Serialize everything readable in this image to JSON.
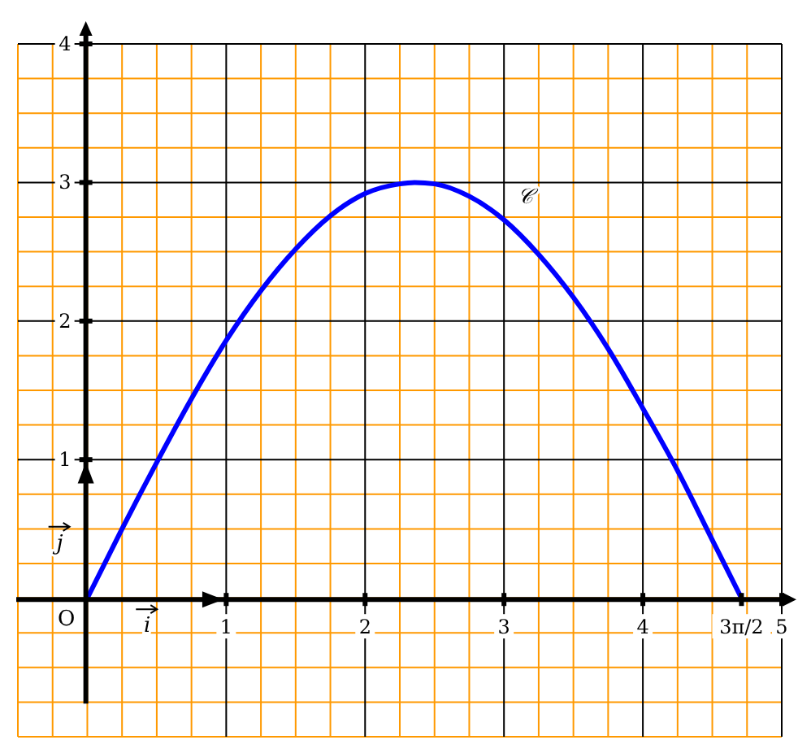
{
  "chart_data": {
    "type": "line",
    "x": [
      0,
      0.25,
      0.5,
      0.75,
      1,
      1.25,
      1.5,
      1.75,
      2,
      2.25,
      2.36,
      2.5,
      2.75,
      3,
      3.25,
      3.5,
      3.75,
      4,
      4.25,
      4.5,
      4.71
    ],
    "series": [
      {
        "color": "#0000ff",
        "values": [
          0,
          0.5,
          0.98,
          1.44,
          1.86,
          2.22,
          2.52,
          2.76,
          2.92,
          2.99,
          3,
          2.99,
          2.9,
          2.73,
          2.48,
          2.17,
          1.8,
          1.37,
          0.92,
          0.42,
          0
        ]
      }
    ],
    "xlim": [
      -0.5,
      5
    ],
    "ylim": [
      -1,
      4
    ],
    "xticks": [
      {
        "value": -0.5,
        "label": null
      },
      {
        "value": -0.25,
        "label": null
      },
      {
        "value": 0,
        "label": null
      },
      {
        "value": 0.25,
        "label": null
      },
      {
        "value": 0.5,
        "label": null
      },
      {
        "value": 0.75,
        "label": null
      },
      1,
      {
        "value": 1.25,
        "label": null
      },
      {
        "value": 1.5,
        "label": null
      },
      {
        "value": 1.75,
        "label": null
      },
      2,
      {
        "value": 2.25,
        "label": null
      },
      {
        "value": 2.5,
        "label": null
      },
      {
        "value": 2.75,
        "label": null
      },
      3,
      {
        "value": 3.25,
        "label": null
      },
      {
        "value": 3.5,
        "label": null
      },
      {
        "value": 3.75,
        "label": null
      },
      4,
      {
        "value": 4.25,
        "label": null
      },
      {
        "value": 4.5,
        "label": null
      },
      {
        "value": 4.71,
        "label": "3π/2"
      },
      {
        "value": 4.75,
        "label": null
      },
      5
    ],
    "yticks": [
      {
        "value": -1,
        "label": null
      },
      {
        "value": -0.75,
        "label": null
      },
      {
        "value": -0.5,
        "label": null
      },
      {
        "value": -0.25,
        "label": null
      },
      {
        "value": 0,
        "label": null
      },
      {
        "value": 0.25,
        "label": null
      },
      {
        "value": 0.5,
        "label": null
      },
      {
        "value": 0.75,
        "label": null
      },
      1,
      {
        "value": 1.25,
        "label": null
      },
      {
        "value": 1.5,
        "label": null
      },
      {
        "value": 1.75,
        "label": null
      },
      2,
      {
        "value": 2.25,
        "label": null
      },
      {
        "value": 2.5,
        "label": null
      },
      {
        "value": 2.75,
        "label": null
      },
      3,
      {
        "value": 3.25,
        "label": null
      },
      {
        "value": 3.5,
        "label": null
      },
      {
        "value": 3.75,
        "label": null
      },
      4
    ],
    "grid": true,
    "marker": "none",
    "line_style": "solid",
    "legend": false,
    "annotations": [
      "O",
      "i",
      "j",
      "𝒞"
    ]
  }
}
